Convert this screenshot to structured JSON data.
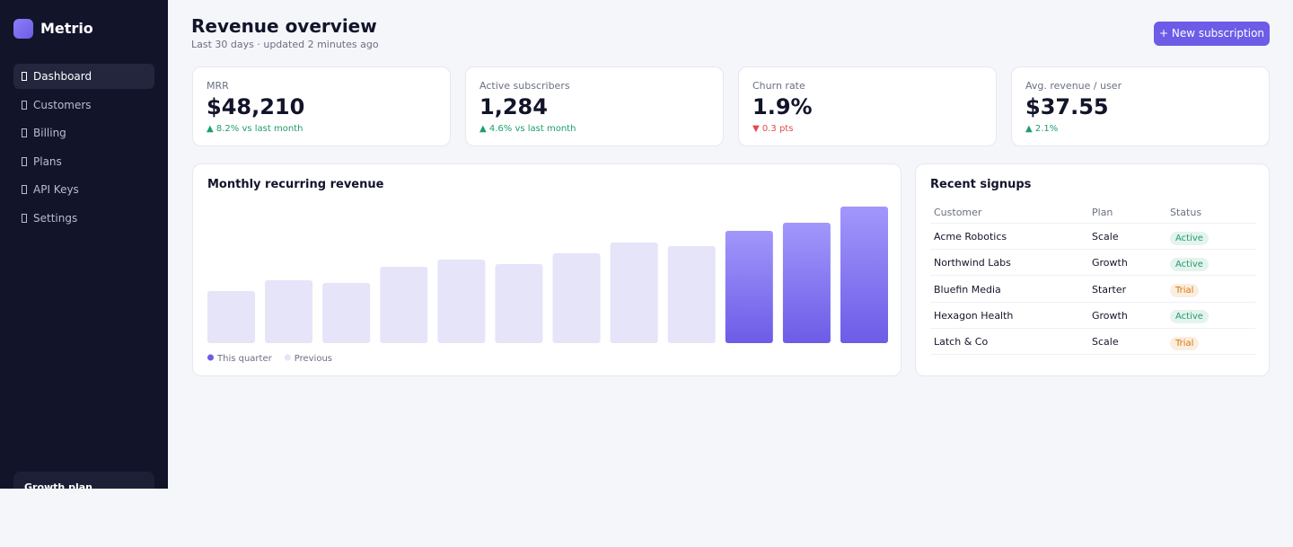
{
  "brand": "Metrio",
  "nav": [
    "Dashboard",
    "Customers",
    "Billing",
    "Plans",
    "API Keys",
    "Settings"
  ],
  "plan_card": "Growth plan",
  "header": {
    "title": "Revenue overview",
    "subtitle": "Last 30 days · updated 2 minutes ago",
    "button": "+ New subscription"
  },
  "kpis": [
    {
      "label": "MRR",
      "value": "$48,210",
      "delta": "▲ 8.2% vs last month",
      "delta_color": "#1f9d6b"
    },
    {
      "label": "Active subscribers",
      "value": "1,284",
      "delta": "▲ 4.6% vs last month",
      "delta_color": "#1f9d6b"
    },
    {
      "label": "Churn rate",
      "value": "1.9%",
      "delta": "▼ 0.3 pts",
      "delta_color": "#e5484d"
    },
    {
      "label": "Avg. revenue / user",
      "value": "$37.55",
      "delta": "▲ 2.1%",
      "delta_color": "#1f9d6b"
    }
  ],
  "chart_data": {
    "type": "bar",
    "title": "Monthly recurring revenue",
    "series": [
      {
        "name": "This quarter",
        "color": "#6c5ce7",
        "values": [
          null,
          null,
          null,
          null,
          null,
          null,
          null,
          null,
          null,
          125,
          134,
          152
        ]
      },
      {
        "name": "Previous",
        "color": "#e6e4f9",
        "values": [
          58,
          70,
          67,
          85,
          93,
          88,
          100,
          112,
          108,
          null,
          null,
          null
        ]
      }
    ]
  },
  "signups": {
    "title": "Recent signups",
    "columns": [
      "Customer",
      "Plan",
      "Status"
    ],
    "rows": [
      {
        "customer": "Acme Robotics",
        "plan": "Scale",
        "status": "Active",
        "status_color": "#1f9d6b"
      },
      {
        "customer": "Northwind Labs",
        "plan": "Growth",
        "status": "Active",
        "status_color": "#1f9d6b"
      },
      {
        "customer": "Bluefin Media",
        "plan": "Starter",
        "status": "Trial",
        "status_color": "#d97706"
      },
      {
        "customer": "Hexagon Health",
        "plan": "Growth",
        "status": "Active",
        "status_color": "#1f9d6b"
      },
      {
        "customer": "Latch & Co",
        "plan": "Scale",
        "status": "Trial",
        "status_color": "#d97706"
      }
    ]
  }
}
